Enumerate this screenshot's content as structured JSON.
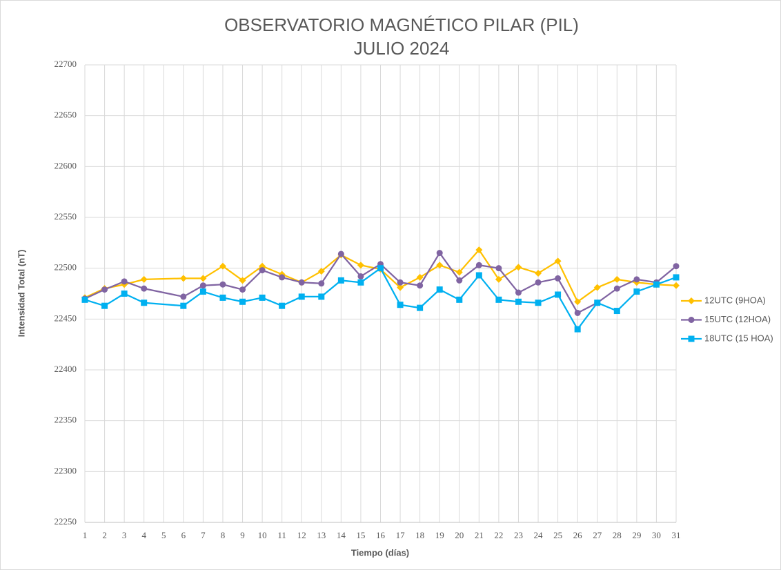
{
  "chart_data": {
    "type": "line",
    "title": "OBSERVATORIO MAGNÉTICO PILAR (PIL)",
    "subtitle": "JULIO 2024",
    "x_label": "Tiempo (días)",
    "y_label": "Intensidad Total (nT)",
    "x": [
      1,
      2,
      3,
      4,
      6,
      7,
      8,
      9,
      10,
      11,
      12,
      13,
      14,
      15,
      16,
      17,
      18,
      19,
      20,
      21,
      22,
      23,
      24,
      25,
      26,
      27,
      28,
      29,
      30,
      31
    ],
    "xlim": [
      1,
      31
    ],
    "xticks": [
      1,
      2,
      3,
      4,
      5,
      6,
      7,
      8,
      9,
      10,
      11,
      12,
      13,
      14,
      15,
      16,
      17,
      18,
      19,
      20,
      21,
      22,
      23,
      24,
      25,
      26,
      27,
      28,
      29,
      30,
      31
    ],
    "ylim": [
      22250,
      22700
    ],
    "yticks": [
      22250,
      22300,
      22350,
      22400,
      22450,
      22500,
      22550,
      22600,
      22650,
      22700
    ],
    "grid": true,
    "legend": "right",
    "series": [
      {
        "name": "12UTC (9HOA)",
        "color": "#ffc000",
        "marker": "diamond",
        "values": [
          22471,
          22480,
          22484,
          22489,
          22490,
          22490,
          22502,
          22488,
          22502,
          22494,
          22486,
          22497,
          22513,
          22503,
          22499,
          22481,
          22491,
          22503,
          22496,
          22518,
          22489,
          22501,
          22495,
          22507,
          22467,
          22481,
          22489,
          22486,
          22484,
          22483
        ]
      },
      {
        "name": "15UTC (12HOA)",
        "color": "#8064a2",
        "marker": "circle",
        "values": [
          22470,
          22479,
          22487,
          22480,
          22472,
          22483,
          22484,
          22479,
          22498,
          22491,
          22486,
          22485,
          22514,
          22492,
          22504,
          22486,
          22483,
          22515,
          22488,
          22503,
          22500,
          22476,
          22486,
          22490,
          22456,
          22466,
          22480,
          22489,
          22486,
          22502
        ]
      },
      {
        "name": "18UTC (15 HOA)",
        "color": "#00b0f0",
        "marker": "square",
        "values": [
          22469,
          22463,
          22475,
          22466,
          22463,
          22477,
          22471,
          22467,
          22471,
          22463,
          22472,
          22472,
          22488,
          22486,
          22500,
          22464,
          22461,
          22479,
          22469,
          22493,
          22469,
          22467,
          22466,
          22474,
          22440,
          22466,
          22458,
          22477,
          22484,
          22491
        ]
      }
    ]
  }
}
